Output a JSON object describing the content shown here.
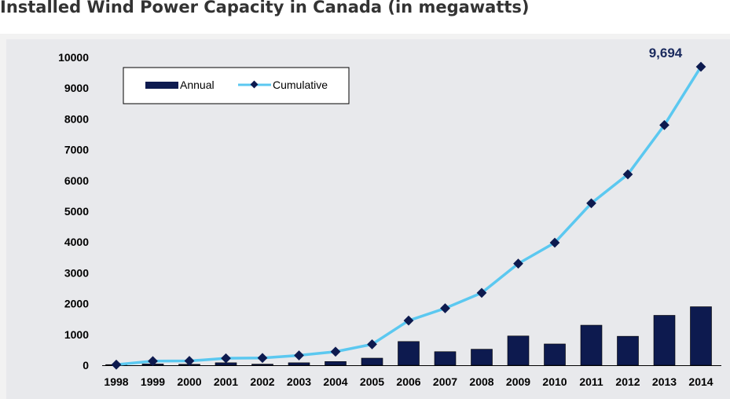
{
  "title": "Installed Wind Power Capacity in Canada (in megawatts)",
  "colors": {
    "annual": "#0d1a4f",
    "cumulative_line": "#5bc8f0",
    "cumulative_marker": "#0d1a4f",
    "annotation": "#1a2a5e"
  },
  "chart_data": {
    "type": "bar",
    "categories": [
      "1998",
      "1999",
      "2000",
      "2001",
      "2002",
      "2003",
      "2004",
      "2005",
      "2006",
      "2007",
      "2008",
      "2009",
      "2010",
      "2011",
      "2012",
      "2013",
      "2014"
    ],
    "series": [
      {
        "name": "Annual",
        "type": "bar",
        "values": [
          20,
          40,
          30,
          80,
          35,
          80,
          120,
          230,
          770,
          440,
          520,
          950,
          690,
          1300,
          940,
          1620,
          1900
        ]
      },
      {
        "name": "Cumulative",
        "type": "line",
        "values": [
          20,
          135,
          140,
          225,
          235,
          320,
          440,
          680,
          1450,
          1850,
          2350,
          3300,
          3980,
          5260,
          6200,
          7800,
          9694
        ]
      }
    ],
    "annotation": {
      "category": "2014",
      "text": "9,694"
    },
    "y_ticks": [
      "0",
      "1000",
      "2000",
      "3000",
      "4000",
      "5000",
      "6000",
      "7000",
      "8000",
      "9000",
      "10000"
    ],
    "ylim": [
      0,
      10000
    ],
    "xlabel": "",
    "ylabel": "",
    "grid": false,
    "legend_position": "top-left"
  }
}
